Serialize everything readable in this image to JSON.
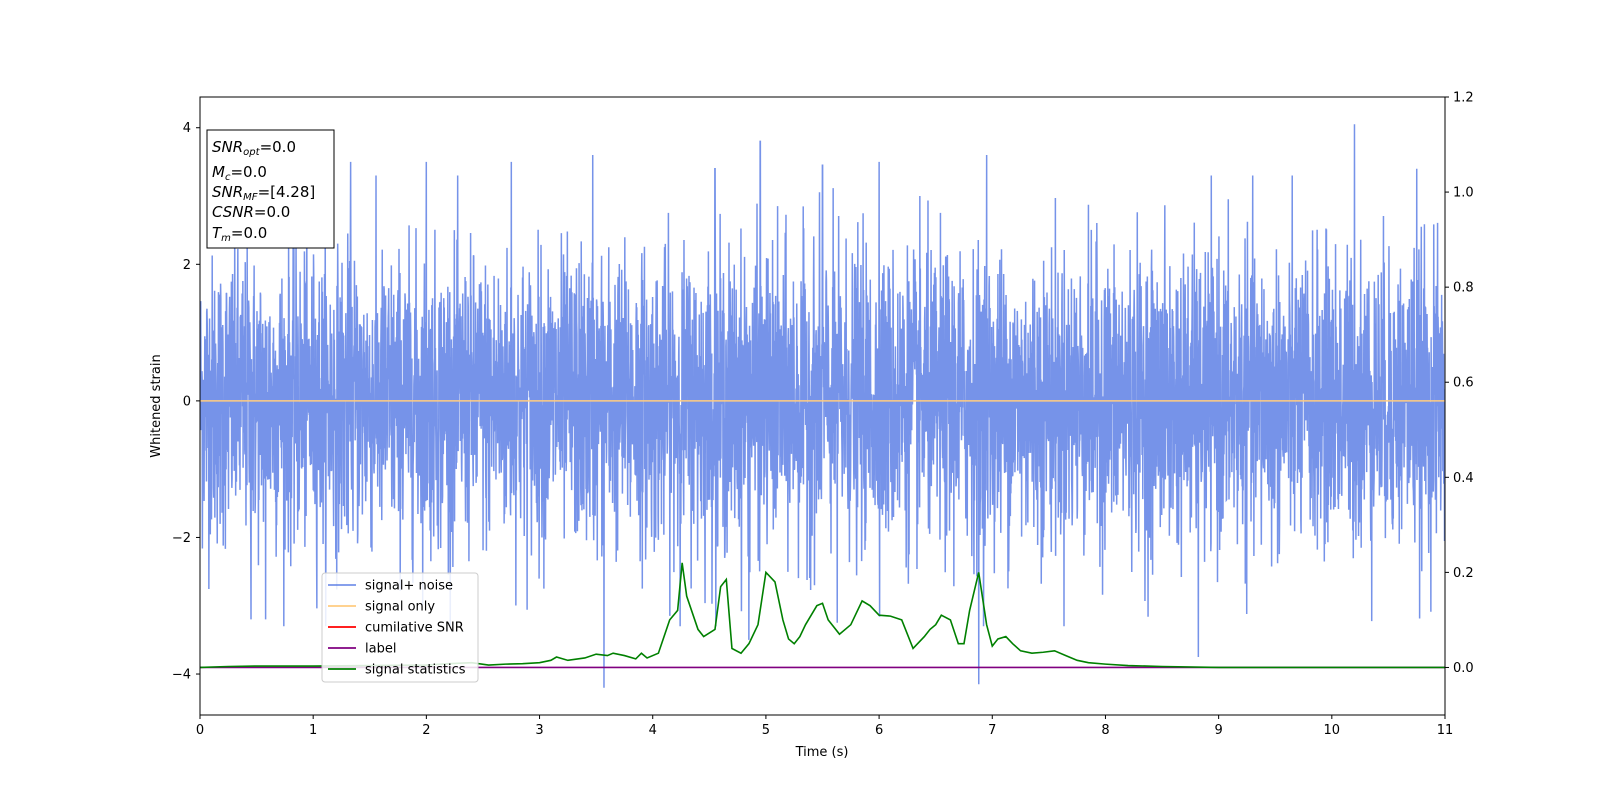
{
  "chart_data": {
    "type": "line",
    "xlabel": "Time (s)",
    "ylabel": "Whitened strain",
    "xlim": [
      0,
      11
    ],
    "ylim": [
      -4.6,
      4.45
    ],
    "y2lim": [
      -0.1,
      1.2
    ],
    "grid": false,
    "legend_position": "lower-left",
    "x_ticks": [
      "0",
      "1",
      "2",
      "3",
      "4",
      "5",
      "6",
      "7",
      "8",
      "9",
      "10",
      "11"
    ],
    "y_ticks": [
      "-4",
      "-2",
      "0",
      "2",
      "4"
    ],
    "y2_ticks": [
      "0.0",
      "0.2",
      "0.4",
      "0.6",
      "0.8",
      "1.0",
      "1.2"
    ],
    "annotation": {
      "lines": [
        {
          "name": "SNR",
          "sub": "opt",
          "value": "=0.0"
        },
        {
          "name": "M",
          "sub": "c",
          "value": "=0.0"
        },
        {
          "name": "SNR",
          "sub": "MF",
          "value": "=[4.28]"
        },
        {
          "name": "CSNR",
          "sub": "",
          "value": "=0.0"
        },
        {
          "name": "T",
          "sub": "m",
          "value": "=0.0"
        }
      ]
    },
    "series": [
      {
        "name": "signal+ noise",
        "color": "#4169e1",
        "axis": "left",
        "description_values": "whitened noise, roughly within [-4.2, 4.05]",
        "spikes": [
          [
            1.33,
            3.5
          ],
          [
            2.0,
            3.5
          ],
          [
            2.75,
            3.5
          ],
          [
            3.47,
            3.6
          ],
          [
            4.55,
            3.4
          ],
          [
            4.95,
            3.8
          ],
          [
            5.5,
            3.45
          ],
          [
            6.0,
            3.5
          ],
          [
            6.95,
            3.6
          ],
          [
            10.2,
            4.05
          ],
          [
            10.75,
            3.4
          ],
          [
            3.57,
            -4.2
          ],
          [
            6.88,
            -4.15
          ],
          [
            8.82,
            -3.75
          ],
          [
            5.63,
            -3.25
          ],
          [
            4.85,
            -3.5
          ],
          [
            0.45,
            -3.2
          ],
          [
            0.58,
            -3.2
          ]
        ]
      },
      {
        "name": "signal only",
        "color": "#ffcc80",
        "axis": "left",
        "x": [
          0,
          11
        ],
        "values": [
          0,
          0
        ]
      },
      {
        "name": "cumilative SNR",
        "color": "#ff0000",
        "axis": "left",
        "x": [],
        "values": []
      },
      {
        "name": "label",
        "color": "#800080",
        "axis": "right",
        "x": [
          0,
          11
        ],
        "values": [
          0,
          0
        ]
      },
      {
        "name": "signal statistics",
        "color": "#008000",
        "axis": "right",
        "x": [
          0,
          0.25,
          0.5,
          1.0,
          1.5,
          2.0,
          2.2,
          2.4,
          2.55,
          2.7,
          2.85,
          3.0,
          3.1,
          3.15,
          3.25,
          3.4,
          3.5,
          3.6,
          3.65,
          3.75,
          3.85,
          3.9,
          3.95,
          4.05,
          4.15,
          4.22,
          4.26,
          4.3,
          4.4,
          4.45,
          4.55,
          4.6,
          4.65,
          4.7,
          4.78,
          4.85,
          4.93,
          5.0,
          5.08,
          5.15,
          5.2,
          5.25,
          5.3,
          5.35,
          5.4,
          5.45,
          5.5,
          5.55,
          5.6,
          5.65,
          5.75,
          5.85,
          5.92,
          6.0,
          6.1,
          6.2,
          6.3,
          6.4,
          6.45,
          6.5,
          6.55,
          6.63,
          6.7,
          6.75,
          6.8,
          6.88,
          6.95,
          7.0,
          7.05,
          7.12,
          7.18,
          7.25,
          7.35,
          7.45,
          7.55,
          7.65,
          7.75,
          7.85,
          8.0,
          8.2,
          8.5,
          9.0,
          10.0,
          11.0
        ],
        "values": [
          0.0,
          0.002,
          0.003,
          0.003,
          0.004,
          0.005,
          0.008,
          0.01,
          0.005,
          0.007,
          0.008,
          0.01,
          0.015,
          0.022,
          0.015,
          0.02,
          0.028,
          0.025,
          0.03,
          0.025,
          0.018,
          0.03,
          0.02,
          0.03,
          0.1,
          0.12,
          0.22,
          0.15,
          0.08,
          0.065,
          0.08,
          0.17,
          0.185,
          0.04,
          0.03,
          0.05,
          0.09,
          0.2,
          0.18,
          0.1,
          0.06,
          0.05,
          0.065,
          0.09,
          0.11,
          0.13,
          0.135,
          0.1,
          0.085,
          0.07,
          0.09,
          0.14,
          0.13,
          0.11,
          0.108,
          0.1,
          0.04,
          0.065,
          0.08,
          0.09,
          0.11,
          0.1,
          0.05,
          0.05,
          0.12,
          0.2,
          0.09,
          0.045,
          0.06,
          0.065,
          0.05,
          0.035,
          0.03,
          0.032,
          0.035,
          0.025,
          0.015,
          0.01,
          0.007,
          0.004,
          0.002,
          0.0,
          0.0,
          0.0
        ]
      }
    ]
  }
}
